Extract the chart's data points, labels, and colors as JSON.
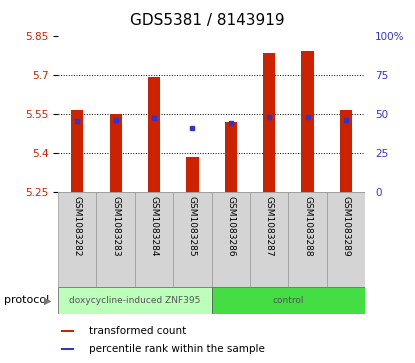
{
  "title": "GDS5381 / 8143919",
  "samples": [
    "GSM1083282",
    "GSM1083283",
    "GSM1083284",
    "GSM1083285",
    "GSM1083286",
    "GSM1083287",
    "GSM1083288",
    "GSM1083289"
  ],
  "bar_bottoms": [
    5.25,
    5.25,
    5.25,
    5.25,
    5.25,
    5.25,
    5.25,
    5.25
  ],
  "bar_tops": [
    5.565,
    5.55,
    5.695,
    5.385,
    5.52,
    5.785,
    5.795,
    5.565
  ],
  "percentile_values": [
    5.525,
    5.528,
    5.536,
    5.498,
    5.516,
    5.538,
    5.538,
    5.528
  ],
  "ylim_left": [
    5.25,
    5.85
  ],
  "ylim_right": [
    0,
    100
  ],
  "yticks_left": [
    5.25,
    5.4,
    5.55,
    5.7,
    5.85
  ],
  "ytick_labels_left": [
    "5.25",
    "5.4",
    "5.55",
    "5.7",
    "5.85"
  ],
  "yticks_right": [
    0,
    25,
    50,
    75,
    100
  ],
  "ytick_labels_right": [
    "0",
    "25",
    "50",
    "75",
    "100%"
  ],
  "bar_color": "#cc2200",
  "percentile_color": "#3333cc",
  "grid_color": "#000000",
  "protocol_groups": [
    {
      "label": "doxycycline-induced ZNF395",
      "start": 0,
      "end": 4,
      "color": "#bbffbb"
    },
    {
      "label": "control",
      "start": 4,
      "end": 8,
      "color": "#44dd44"
    }
  ],
  "protocol_label": "protocol",
  "legend_items": [
    {
      "label": "transformed count",
      "color": "#cc2200"
    },
    {
      "label": "percentile rank within the sample",
      "color": "#3333cc"
    }
  ],
  "title_fontsize": 11,
  "axis_label_color_left": "#cc2200",
  "axis_label_color_right": "#3333cc"
}
